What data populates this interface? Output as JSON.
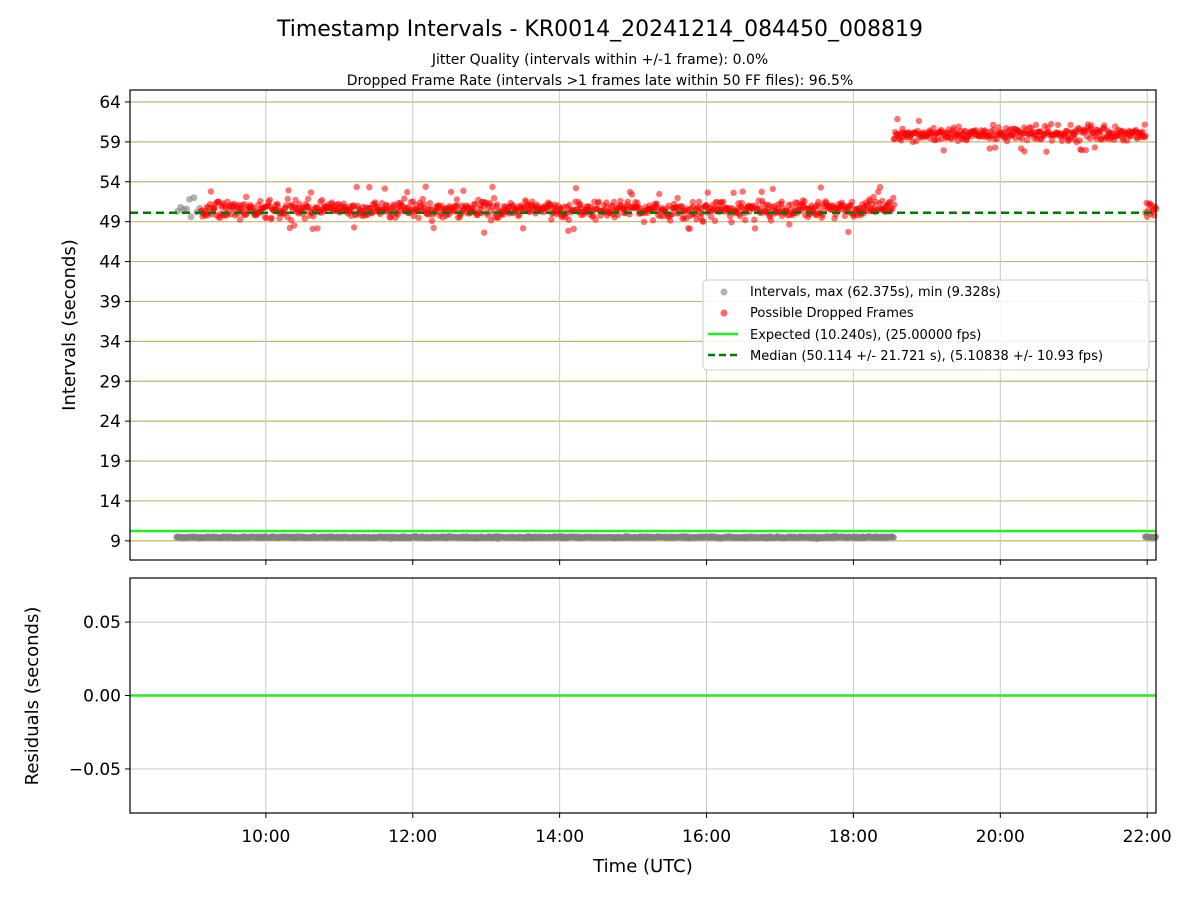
{
  "title": "Timestamp Intervals - KR0014_20241214_084450_008819",
  "subtitle_lines": [
    "Jitter Quality (intervals within +/-1 frame): 0.0%",
    "Dropped Frame Rate (intervals >1 frames late within 50 FF files): 96.5%"
  ],
  "colors": {
    "intervals": "#808080",
    "dropped": "#ff0000",
    "expected": "#22ee22",
    "median": "#007700",
    "grid_top": "#c8b46e",
    "grid_bottom": "#c8c8c8"
  },
  "chart_data": [
    {
      "type": "scatter",
      "xlabel": "",
      "ylabel": "Intervals (seconds)",
      "x_unit": "hours UTC",
      "xlim": [
        8.15,
        22.12
      ],
      "ylim": [
        6.6,
        65.5
      ],
      "y_ticks": [
        9,
        14,
        19,
        24,
        29,
        34,
        39,
        44,
        49,
        54,
        59,
        64
      ],
      "y_tick_labels": [
        "9",
        "14",
        "19",
        "24",
        "29",
        "34",
        "39",
        "44",
        "49",
        "54",
        "59",
        "64"
      ],
      "grid": "horizontal",
      "legend_position": "center-right",
      "legend": [
        "Intervals, max (62.375s), min (9.328s)",
        "Possible Dropped Frames",
        "Expected (10.240s), (25.00000 fps)",
        "Median (50.114 +/- 21.721 s), (5.10838 +/- 10.93 fps)"
      ],
      "series": [
        {
          "name": "Intervals, max (62.375s), min (9.328s)",
          "kind": "points",
          "segments": [
            {
              "x_range": [
                8.78,
                18.55
              ],
              "y_center": 9.45,
              "y_spread": 0.12
            },
            {
              "x_range": [
                21.97,
                22.12
              ],
              "y_center": 9.45,
              "y_spread": 0.12
            }
          ],
          "early_points": [
            {
              "x": 8.8,
              "y": 50.3
            },
            {
              "x": 8.84,
              "y": 50.8
            },
            {
              "x": 8.88,
              "y": 50.5
            },
            {
              "x": 8.92,
              "y": 50.6
            },
            {
              "x": 8.96,
              "y": 51.8
            },
            {
              "x": 8.98,
              "y": 49.6
            },
            {
              "x": 9.02,
              "y": 52.0
            },
            {
              "x": 9.06,
              "y": 50.2
            },
            {
              "x": 9.1,
              "y": 50.7
            }
          ]
        },
        {
          "name": "Possible Dropped Frames",
          "kind": "points",
          "segments": [
            {
              "x_range": [
                9.12,
                18.55
              ],
              "y_center": 50.5,
              "y_spread": 1.3
            },
            {
              "x_range": [
                18.55,
                21.98
              ],
              "y_center": 60.0,
              "y_spread": 1.0
            },
            {
              "x_range": [
                21.98,
                22.12
              ],
              "y_center": 50.5,
              "y_spread": 1.3
            }
          ]
        },
        {
          "name": "Expected (10.240s), (25.00000 fps)",
          "kind": "hline",
          "y": 10.24
        },
        {
          "name": "Median (50.114 +/- 21.721 s), (5.10838 +/- 10.93 fps)",
          "kind": "hline",
          "y": 50.114,
          "style": "dashed"
        }
      ]
    },
    {
      "type": "line",
      "xlabel": "Time (UTC)",
      "ylabel": "Residuals (seconds)",
      "xlim": [
        8.15,
        22.12
      ],
      "ylim": [
        -0.08,
        0.08
      ],
      "x_ticks": [
        10,
        12,
        14,
        16,
        18,
        20,
        22
      ],
      "x_tick_labels": [
        "10:00",
        "12:00",
        "14:00",
        "16:00",
        "18:00",
        "20:00",
        "22:00"
      ],
      "y_ticks": [
        0.05,
        0.0,
        -0.05
      ],
      "y_tick_labels": [
        "0.05",
        "0.00",
        "−0.05"
      ],
      "grid": "both",
      "series": [
        {
          "name": "Residuals",
          "kind": "hline",
          "y": 0.0
        }
      ]
    }
  ]
}
